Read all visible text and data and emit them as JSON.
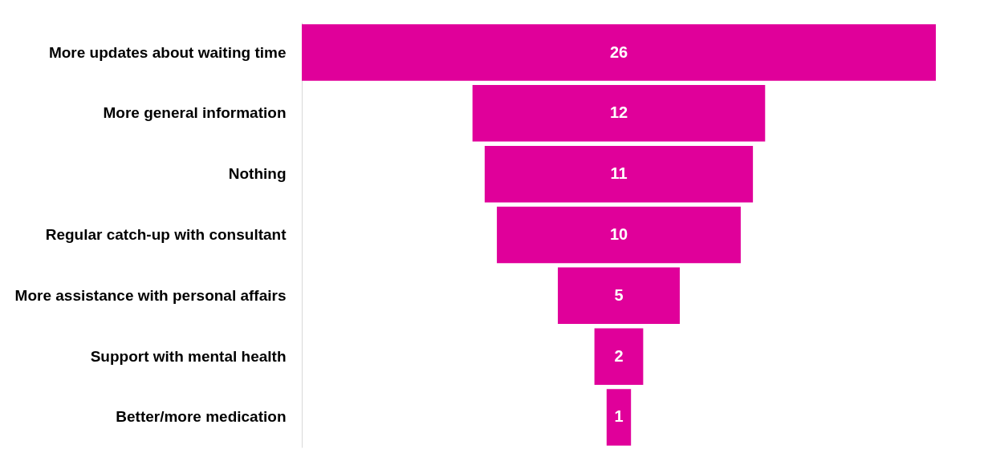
{
  "chart_data": {
    "type": "other",
    "categories": [
      "More updates about waiting time",
      "More general information",
      "Nothing",
      "Regular catch-up with consultant",
      "More assistance with personal affairs",
      "Support with mental health",
      "Better/more medication"
    ],
    "values": [
      26,
      12,
      11,
      10,
      5,
      2,
      1
    ],
    "color": "#e0009a",
    "data_labels": true
  }
}
